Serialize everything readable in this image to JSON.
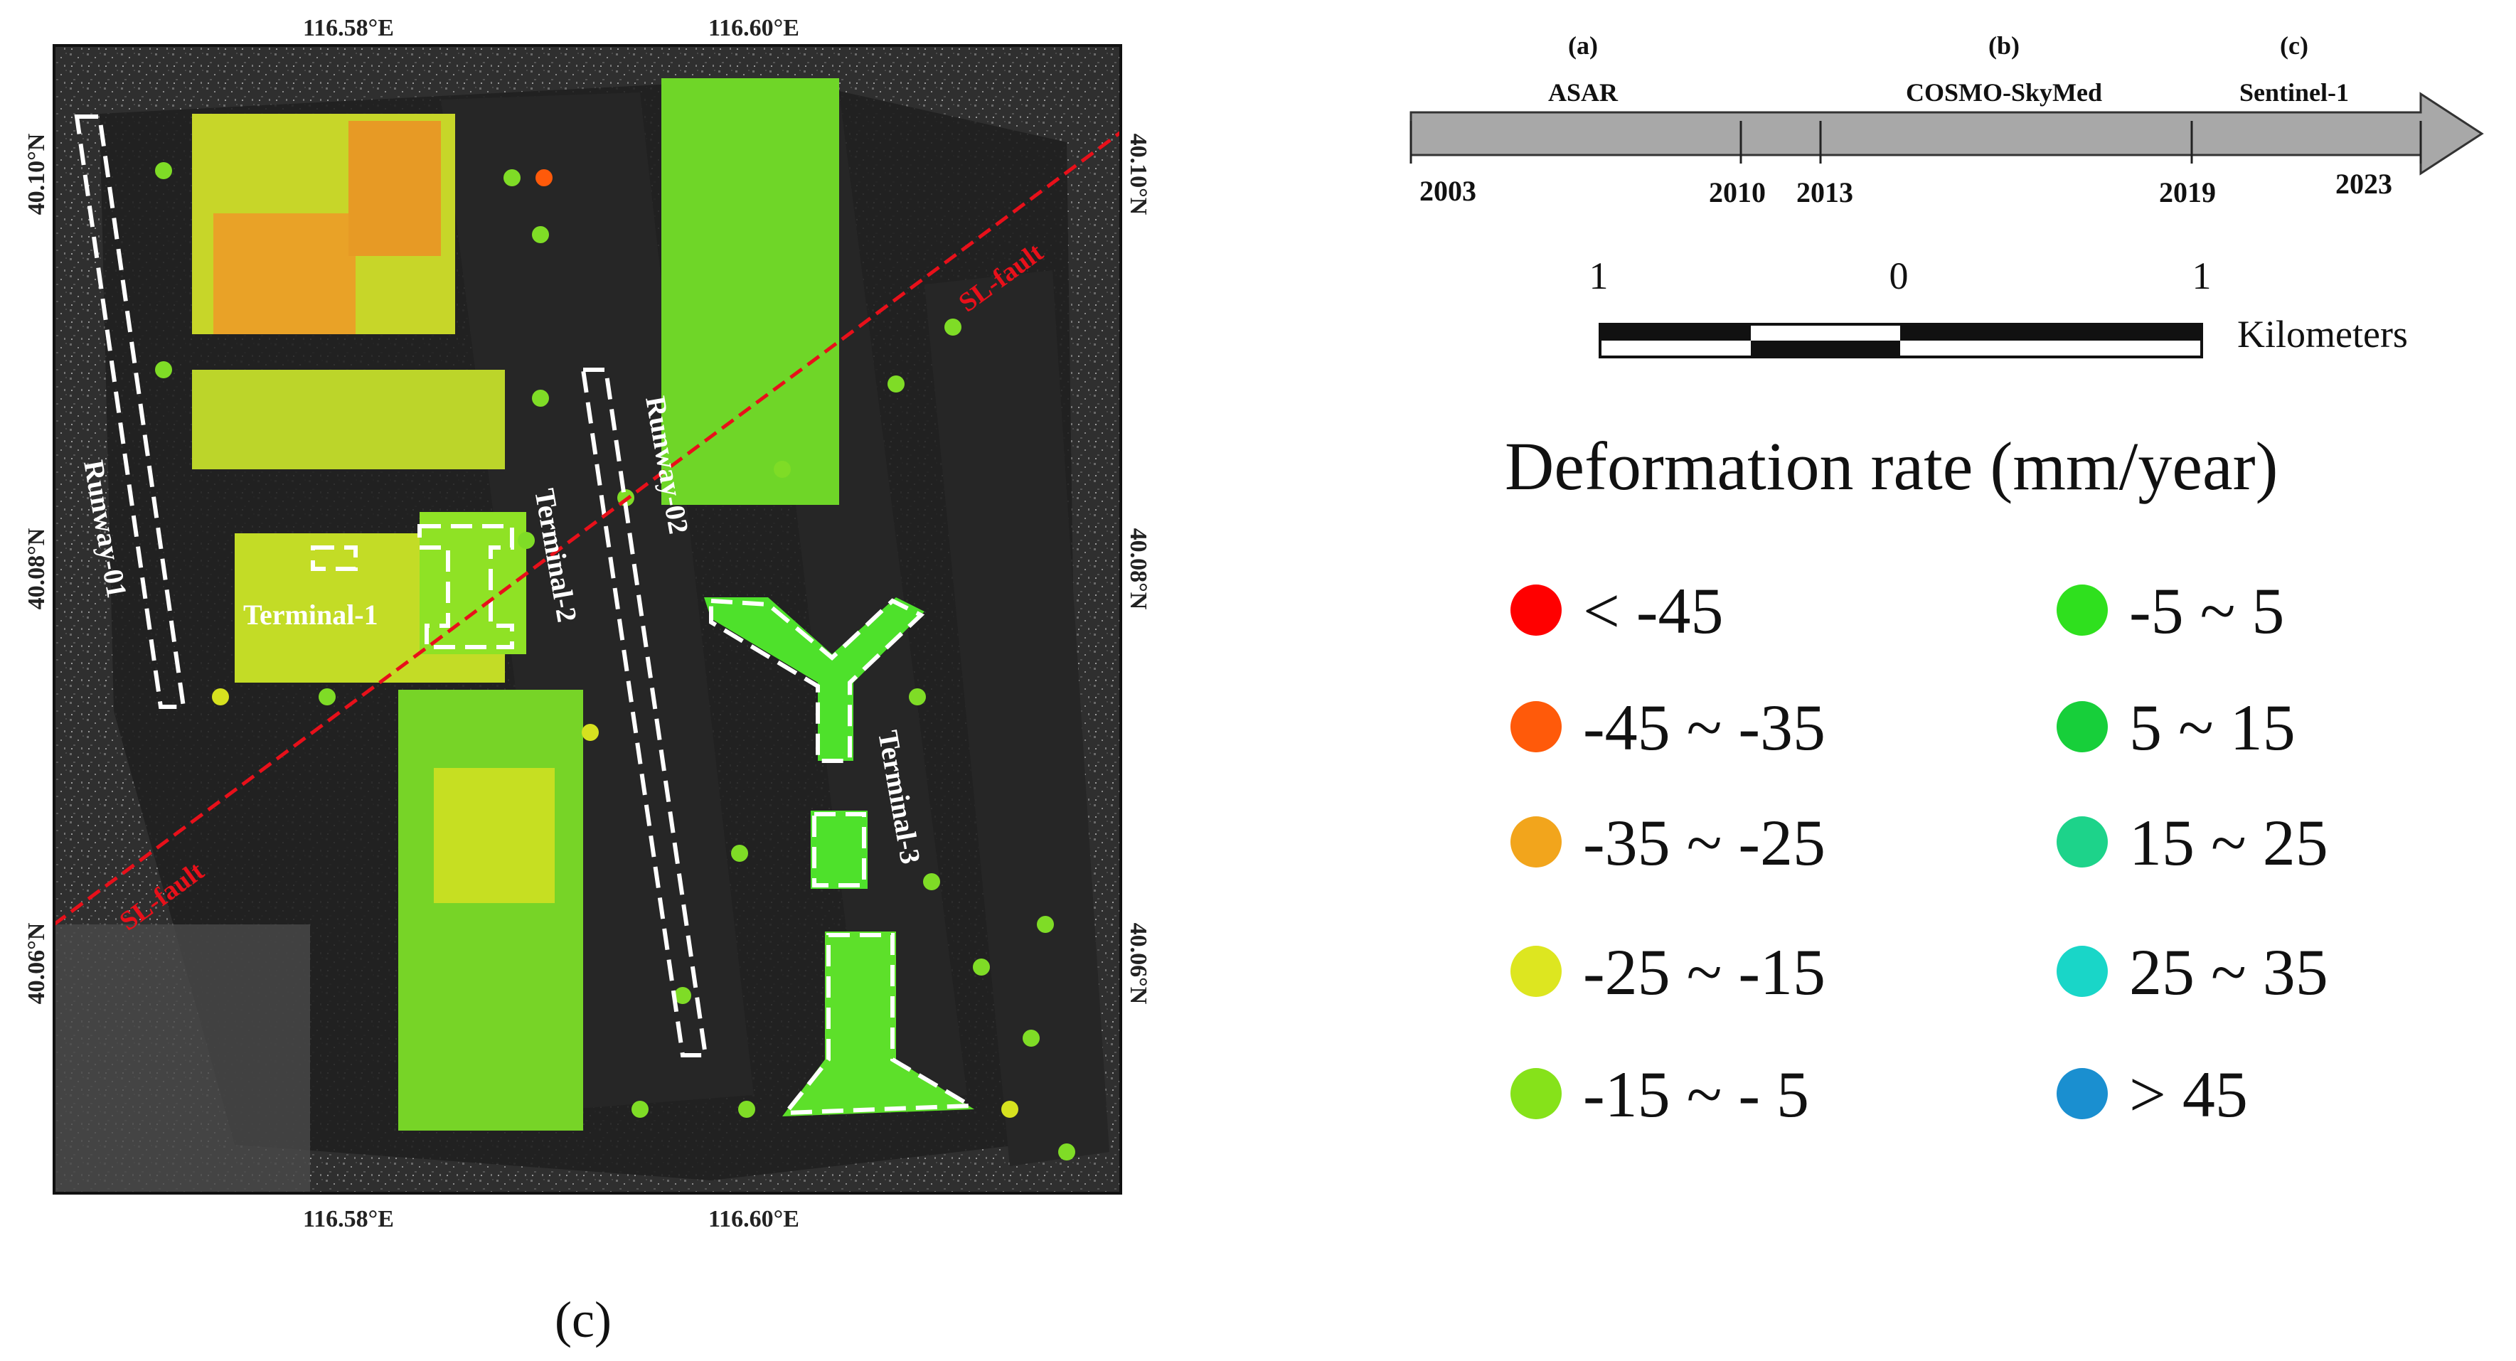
{
  "map": {
    "top_lon_labels": [
      "116.58°E",
      "116.60°E"
    ],
    "bottom_lon_labels": [
      "116.58°E",
      "116.60°E"
    ],
    "left_lat_labels": [
      "40.10°N",
      "40.08°N",
      "40.06°N"
    ],
    "right_lat_labels": [
      "40.10°N",
      "40.08°N",
      "40.06°N"
    ],
    "features": {
      "runway_1": "Runway-01",
      "runway_2": "Runway-02",
      "terminal_1": "Terminal-1",
      "terminal_2": "Terminal-2",
      "terminal_3": "Terminal-3",
      "fault_upper": "SL-fault",
      "fault_lower": "SL-fault"
    },
    "colors": {
      "fault_line": "#e8101a",
      "outline": "#ffffff"
    }
  },
  "timeline": {
    "sensors": [
      {
        "tag": "(a)",
        "name": "ASAR"
      },
      {
        "tag": "(b)",
        "name": "COSMO-SkyMed"
      },
      {
        "tag": "(c)",
        "name": "Sentinel-1"
      }
    ],
    "years": [
      "2003",
      "2010",
      "2013",
      "2019",
      "2023"
    ]
  },
  "scalebar": {
    "ticks": [
      "1",
      "0",
      "1"
    ],
    "unit": "Kilometers"
  },
  "legend": {
    "title": "Deformation rate (mm/year)",
    "items": [
      {
        "label": "< -45",
        "color": "#ff0000"
      },
      {
        "label": "-45 ~ -35",
        "color": "#ff5a0a"
      },
      {
        "label": "-35 ~ -25",
        "color": "#f2a51c"
      },
      {
        "label": "-25 ~ -15",
        "color": "#dde620"
      },
      {
        "label": "-15 ~ - 5",
        "color": "#86e21a"
      },
      {
        "label": "-5 ~ 5",
        "color": "#2fe01e"
      },
      {
        "label": " 5 ~ 15",
        "color": "#17cf3a"
      },
      {
        "label": " 15 ~ 25",
        "color": "#1dd38a"
      },
      {
        "label": " 25 ~ 35",
        "color": "#19d6c8"
      },
      {
        "label": "> 45",
        "color": "#1a8fd0"
      }
    ]
  },
  "panel_label": "(c)"
}
